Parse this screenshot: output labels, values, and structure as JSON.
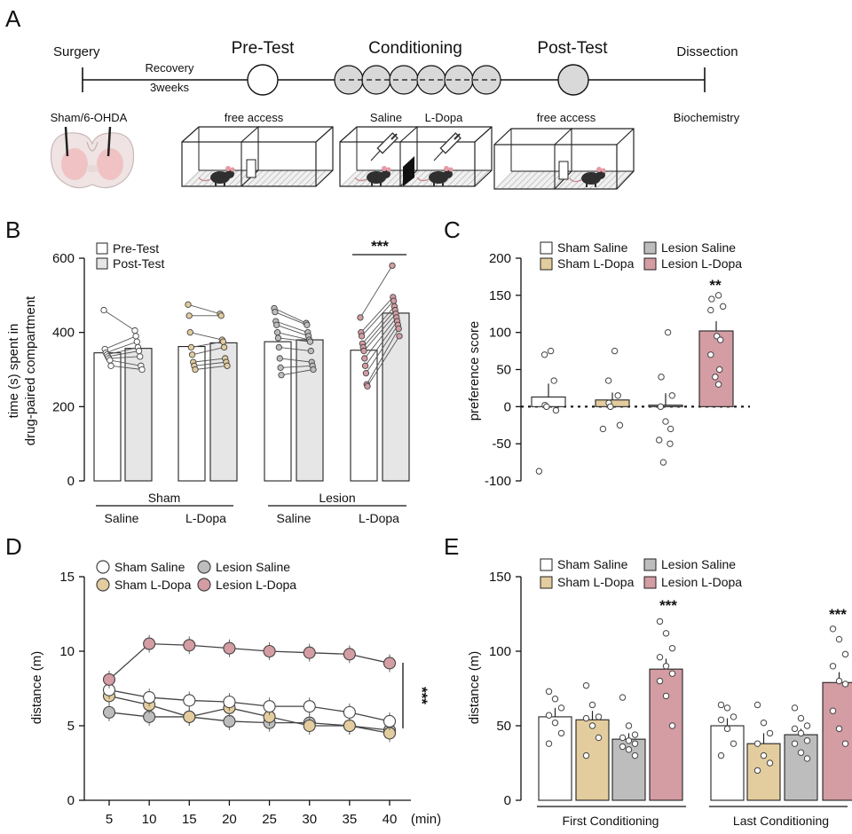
{
  "panel_labels": {
    "a": "A",
    "b": "B",
    "c": "C",
    "d": "D",
    "e": "E"
  },
  "timeline": {
    "surgery": "Surgery",
    "pretest": "Pre-Test",
    "conditioning": "Conditioning",
    "posttest": "Post-Test",
    "dissection": "Dissection",
    "recovery": "Recovery",
    "weeks": "3weeks",
    "sham_lesion": "Sham/6-OHDA",
    "free_access_1": "free access",
    "saline": "Saline",
    "ldopa": "L-Dopa",
    "free_access_2": "free access",
    "biochemistry": "Biochemistry"
  },
  "colors": {
    "sham_saline": "#ffffff",
    "sham_ldopa": "#e3cc9e",
    "lesion_saline": "#bdbdbd",
    "lesion_ldopa": "#d49ca3",
    "post_test": "#e6e6e6",
    "circle_gray": "#d9d9d9"
  },
  "chart_data": [
    {
      "panel": "B",
      "type": "bar",
      "ylabel": [
        "time (s) spent in",
        "drug-paired compartment"
      ],
      "ylim": [
        0,
        600
      ],
      "yticks": [
        "0",
        "200",
        "400",
        "600"
      ],
      "legend": [
        "Pre-Test",
        "Post-Test"
      ],
      "group_labels": [
        "Sham",
        "Lesion"
      ],
      "categories": [
        "Saline",
        "L-Dopa",
        "Saline",
        "L-Dopa"
      ],
      "series": [
        {
          "name": "Pre-Test",
          "values": [
            345,
            362,
            375,
            352
          ]
        },
        {
          "name": "Post-Test",
          "values": [
            357,
            372,
            380,
            452
          ]
        }
      ],
      "points_pre": [
        [
          460,
          355,
          345,
          340,
          335,
          330,
          325,
          310
        ],
        [
          475,
          445,
          400,
          360,
          340,
          320,
          310,
          300
        ],
        [
          465,
          455,
          430,
          420,
          400,
          385,
          360,
          330,
          305,
          285
        ],
        [
          440,
          400,
          390,
          370,
          360,
          350,
          330,
          310,
          290,
          260,
          255
        ]
      ],
      "points_post": [
        [
          405,
          390,
          375,
          360,
          350,
          335,
          310,
          300
        ],
        [
          450,
          445,
          380,
          375,
          360,
          330,
          320,
          310
        ],
        [
          425,
          420,
          400,
          390,
          380,
          375,
          350,
          320,
          310,
          300
        ],
        [
          580,
          495,
          485,
          470,
          460,
          450,
          440,
          430,
          420,
          410,
          390
        ]
      ],
      "significance": "***"
    },
    {
      "panel": "C",
      "type": "bar",
      "ylabel": "preference score",
      "ylim": [
        -100,
        200
      ],
      "yticks": [
        "-100",
        "-50",
        "0",
        "50",
        "100",
        "150",
        "200"
      ],
      "categories": [
        "Sham Saline",
        "Sham L-Dopa",
        "Lesion Saline",
        "Lesion L-Dopa"
      ],
      "values": [
        13,
        9,
        2,
        102
      ],
      "errors": [
        18,
        10,
        16,
        13
      ],
      "points": [
        [
          75,
          70,
          35,
          2,
          0,
          -5,
          -87
        ],
        [
          75,
          35,
          15,
          5,
          0,
          -25,
          -30
        ],
        [
          100,
          40,
          15,
          0,
          -20,
          -30,
          -45,
          -50,
          -75
        ],
        [
          150,
          145,
          135,
          130,
          95,
          90,
          70,
          50,
          40,
          30
        ]
      ],
      "significance": "**"
    },
    {
      "panel": "D",
      "type": "line",
      "ylabel": "distance (m)",
      "ylim": [
        0,
        15
      ],
      "yticks": [
        "0",
        "5",
        "10",
        "15"
      ],
      "x": [
        5,
        10,
        15,
        20,
        25,
        30,
        35,
        40
      ],
      "xticks": [
        "5",
        "10",
        "15",
        "20",
        "25",
        "30",
        "35",
        "40"
      ],
      "xunit": "(min)",
      "series": [
        {
          "name": "Sham Saline",
          "values": [
            7.4,
            6.9,
            6.7,
            6.6,
            6.3,
            6.3,
            5.9,
            5.3
          ]
        },
        {
          "name": "Sham L-Dopa",
          "values": [
            7.0,
            6.4,
            5.6,
            6.2,
            5.6,
            5.0,
            5.0,
            4.5
          ]
        },
        {
          "name": "Lesion Saline",
          "values": [
            5.9,
            5.6,
            5.6,
            5.3,
            5.2,
            5.2,
            5.0,
            4.7
          ]
        },
        {
          "name": "Lesion L-Dopa",
          "values": [
            8.1,
            10.5,
            10.4,
            10.2,
            10.0,
            9.9,
            9.8,
            9.2
          ]
        }
      ],
      "significance": "***"
    },
    {
      "panel": "E",
      "type": "bar",
      "ylabel": "distance (m)",
      "ylim": [
        0,
        150
      ],
      "yticks": [
        "0",
        "50",
        "100",
        "150"
      ],
      "groups": [
        "First Conditioning",
        "Last Conditioning"
      ],
      "legend": [
        "Sham Saline",
        "Sham L-Dopa",
        "Lesion Saline",
        "Lesion L-Dopa"
      ],
      "values": [
        [
          56,
          54,
          41,
          88
        ],
        [
          50,
          38,
          44,
          79
        ]
      ],
      "errors": [
        [
          6,
          6,
          4,
          7
        ],
        [
          5,
          7,
          4,
          7
        ]
      ],
      "points": [
        [
          [
            73,
            68,
            62,
            57,
            52,
            45,
            38
          ],
          [
            77,
            64,
            56,
            55,
            50,
            42,
            30
          ],
          [
            69,
            50,
            44,
            42,
            40,
            38,
            36,
            34,
            30
          ],
          [
            120,
            112,
            102,
            96,
            90,
            85,
            80,
            70,
            50
          ]
        ],
        [
          [
            64,
            62,
            56,
            54,
            48,
            38,
            30
          ],
          [
            64,
            52,
            45,
            38,
            30,
            25,
            20
          ],
          [
            62,
            55,
            50,
            48,
            45,
            40,
            38,
            32,
            28
          ],
          [
            115,
            108,
            98,
            90,
            80,
            78,
            60,
            48,
            38
          ]
        ]
      ],
      "significance": [
        "***",
        "***"
      ]
    }
  ]
}
